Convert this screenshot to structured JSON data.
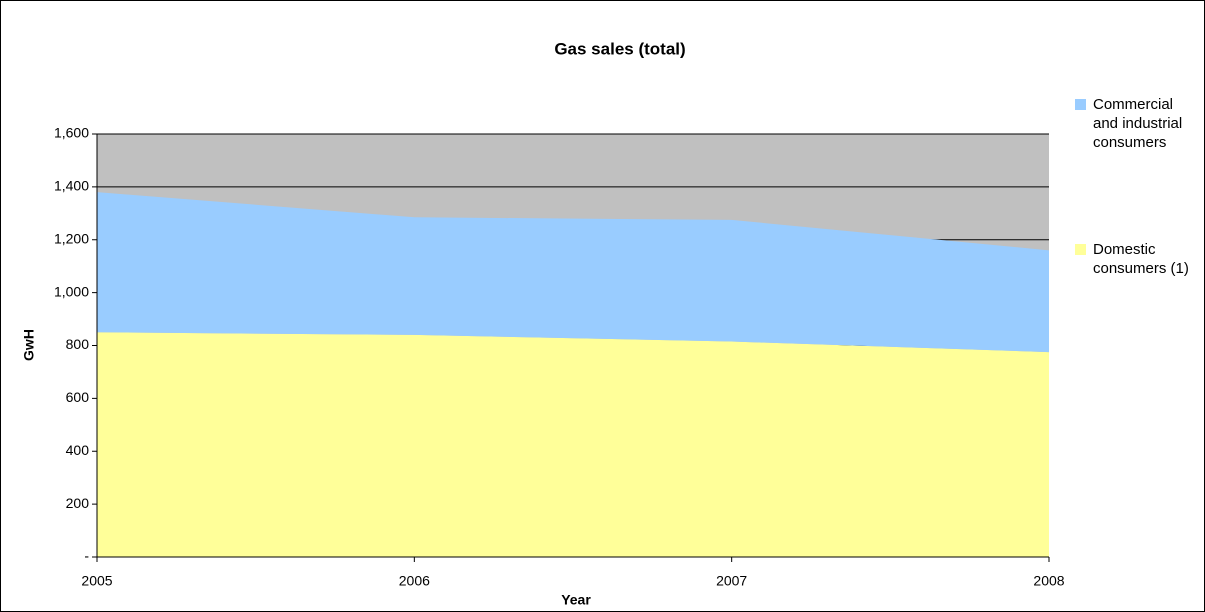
{
  "chart_data": {
    "type": "area",
    "stacked": true,
    "title": "Gas sales (total)",
    "x_label": "Year",
    "y_label": "GwH",
    "x": [
      2005,
      2006,
      2007,
      2008
    ],
    "series": [
      {
        "name": "Domestic consumers (1)",
        "color": "#ffff99",
        "values": [
          850,
          840,
          815,
          775
        ]
      },
      {
        "name": "Commercial and industrial consumers",
        "color": "#99ccff",
        "values": [
          530,
          445,
          460,
          385
        ]
      }
    ],
    "xlim": [
      2005,
      2008
    ],
    "xticks": [
      2005,
      2006,
      2007,
      2008
    ],
    "ylim": [
      0,
      1600
    ],
    "yticks": [
      {
        "value": 0,
        "label": "-"
      },
      200,
      400,
      600,
      800,
      {
        "value": 1000,
        "label": "1,000"
      },
      {
        "value": 1200,
        "label": "1,200"
      },
      {
        "value": 1400,
        "label": "1,400"
      },
      {
        "value": 1600,
        "label": "1,600"
      }
    ],
    "grid": true,
    "plot_background": "#c0c0c0",
    "legend": "right"
  }
}
